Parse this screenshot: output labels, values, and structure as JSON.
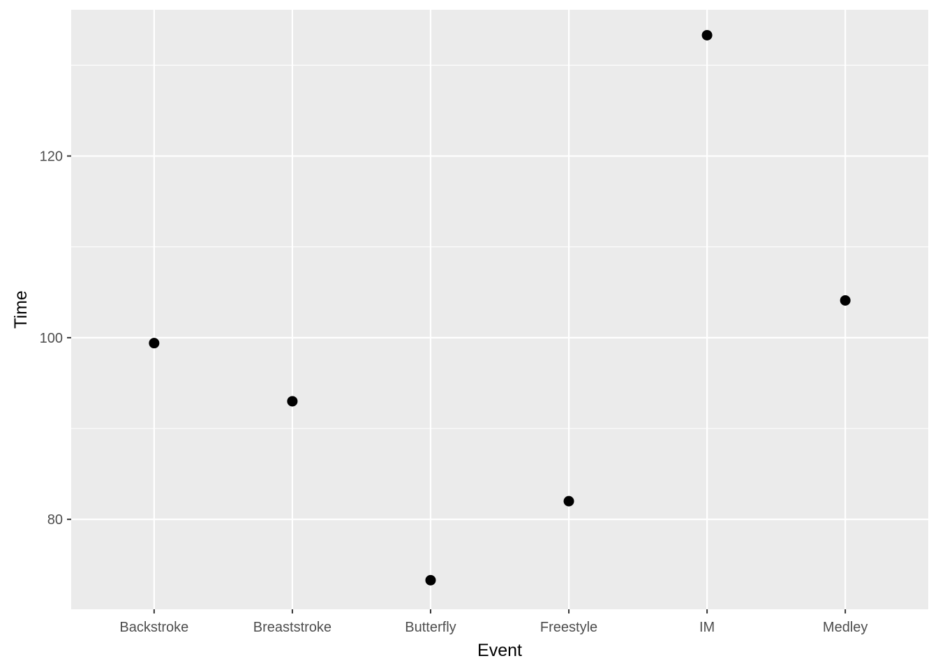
{
  "chart_data": {
    "type": "scatter",
    "title": "",
    "xlabel": "Event",
    "ylabel": "Time",
    "categories": [
      "Backstroke",
      "Breaststroke",
      "Butterfly",
      "Freestyle",
      "IM",
      "Medley"
    ],
    "values": [
      99.4,
      93.0,
      73.3,
      82.0,
      133.3,
      104.1
    ],
    "ylim": [
      70.1,
      136.1
    ],
    "yticks": [
      80,
      100,
      120
    ],
    "y_minor_ticks": [
      90,
      110,
      130
    ],
    "grid": true,
    "legend": "none",
    "colors": {
      "panel_background": "#ebebeb",
      "grid": "#ffffff",
      "point": "#000000",
      "tick_label": "#4d4d4d",
      "axis_title": "#000000"
    }
  }
}
